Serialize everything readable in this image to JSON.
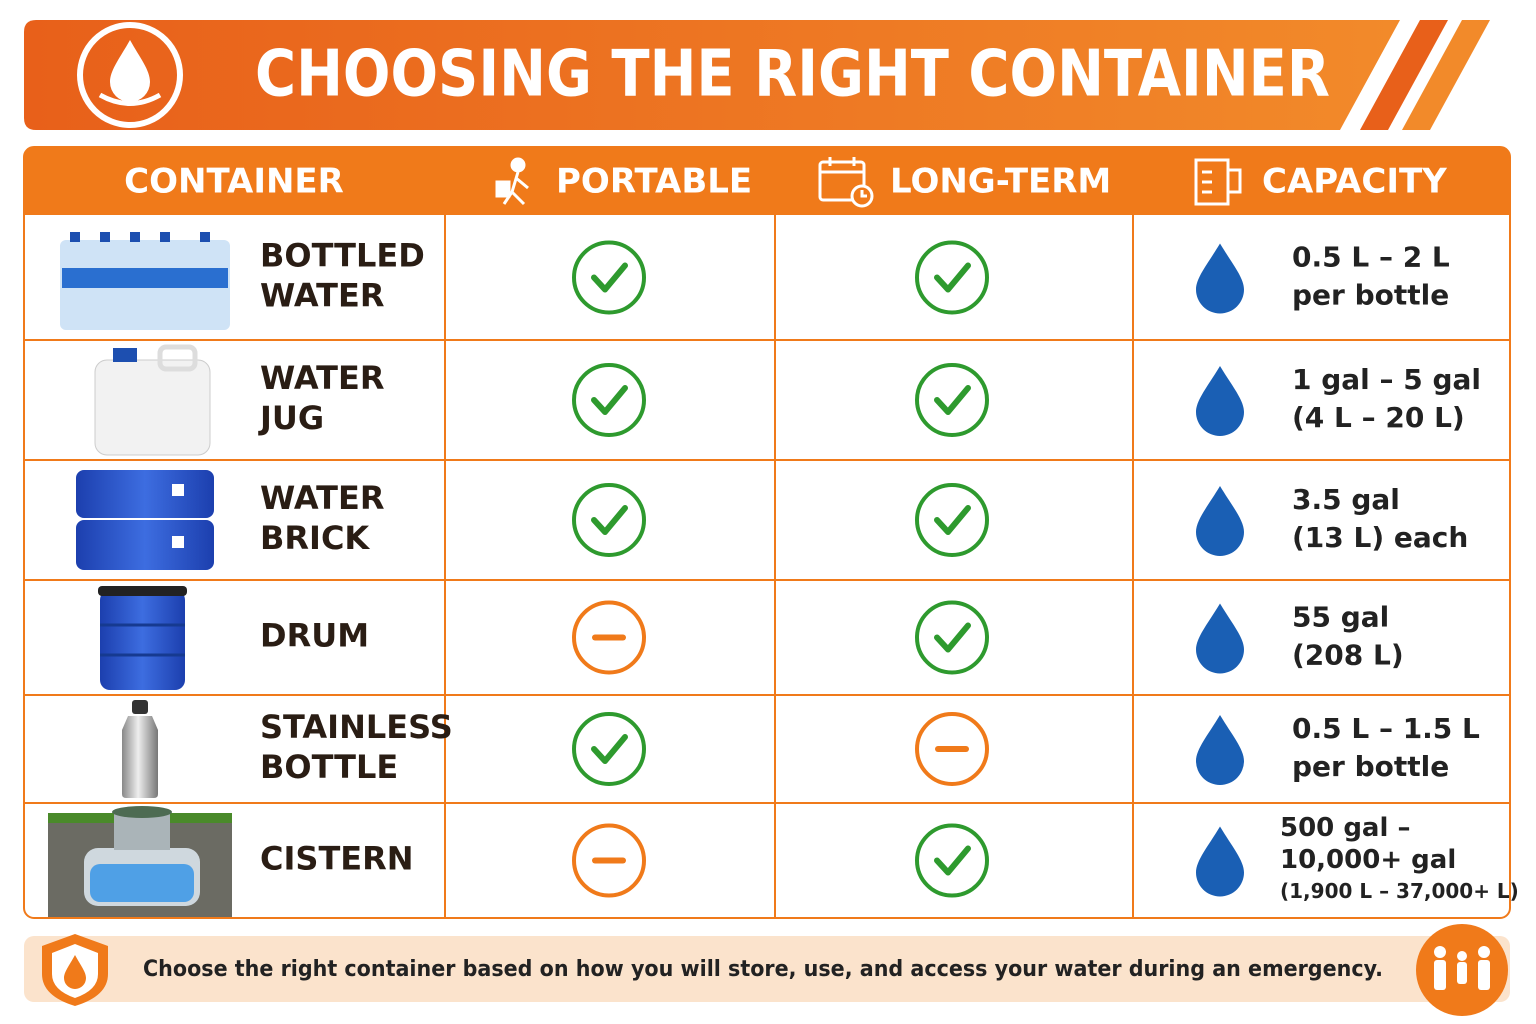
{
  "header": {
    "title": "CHOOSING THE RIGHT CONTAINER"
  },
  "table": {
    "headers": [
      "CONTAINER",
      "PORTABLE",
      "LONG-TERM",
      "CAPACITY"
    ],
    "rows": [
      {
        "name": [
          "BOTTLED",
          "WATER"
        ],
        "portable": true,
        "long_term": true,
        "capacity": [
          "0.5 L – 2 L",
          "per bottle"
        ]
      },
      {
        "name": [
          "WATER",
          "JUG"
        ],
        "portable": true,
        "long_term": true,
        "capacity": [
          "1 gal – 5 gal",
          "(4 L – 20 L)"
        ]
      },
      {
        "name": [
          "WATER",
          "BRICK"
        ],
        "portable": true,
        "long_term": true,
        "capacity": [
          "3.5 gal",
          "(13 L) each"
        ]
      },
      {
        "name": [
          "DRUM"
        ],
        "portable": false,
        "long_term": true,
        "capacity": [
          "55 gal",
          "(208 L)"
        ]
      },
      {
        "name": [
          "STAINLESS",
          "BOTTLE"
        ],
        "portable": true,
        "long_term": false,
        "capacity": [
          "0.5 L – 1.5 L",
          "per bottle"
        ]
      },
      {
        "name": [
          "CISTERN"
        ],
        "portable": false,
        "long_term": true,
        "capacity": [
          "500 gal –",
          "10,000+ gal",
          "(1,900 L – 37,000+ L)"
        ]
      }
    ]
  },
  "footer": {
    "text": "Choose the right container based on how you will store, use, and access your water during an emergency."
  }
}
